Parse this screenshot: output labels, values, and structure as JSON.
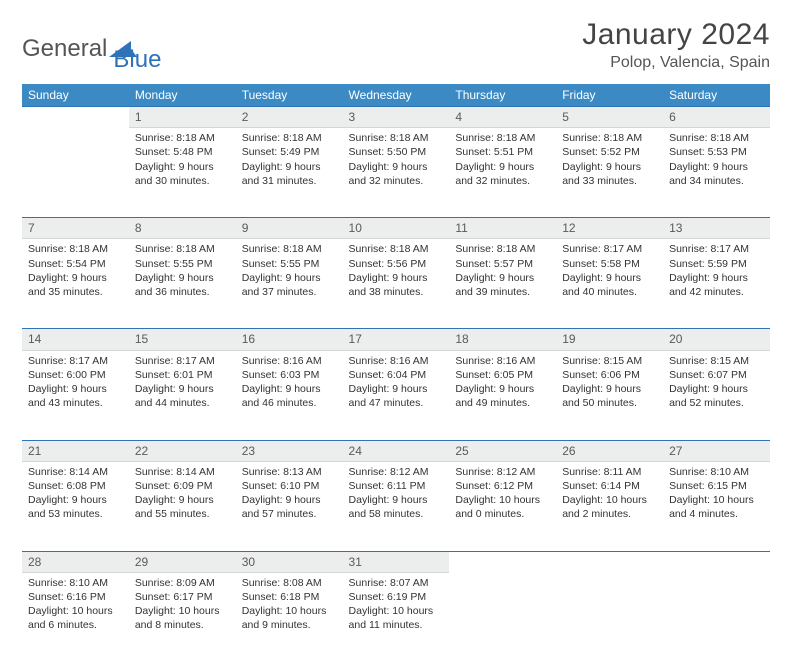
{
  "brand": {
    "part1": "General",
    "part2": "Blue"
  },
  "title": "January 2024",
  "location": "Polop, Valencia, Spain",
  "colors": {
    "header_bg": "#3b8ac4",
    "accent": "#2e72b8",
    "daynum_bg": "#eceded",
    "text": "#333333"
  },
  "day_headers": [
    "Sunday",
    "Monday",
    "Tuesday",
    "Wednesday",
    "Thursday",
    "Friday",
    "Saturday"
  ],
  "weeks": [
    {
      "nums": [
        "",
        "1",
        "2",
        "3",
        "4",
        "5",
        "6"
      ],
      "cells": [
        null,
        {
          "sunrise": "8:18 AM",
          "sunset": "5:48 PM",
          "daylight": "9 hours and 30 minutes."
        },
        {
          "sunrise": "8:18 AM",
          "sunset": "5:49 PM",
          "daylight": "9 hours and 31 minutes."
        },
        {
          "sunrise": "8:18 AM",
          "sunset": "5:50 PM",
          "daylight": "9 hours and 32 minutes."
        },
        {
          "sunrise": "8:18 AM",
          "sunset": "5:51 PM",
          "daylight": "9 hours and 32 minutes."
        },
        {
          "sunrise": "8:18 AM",
          "sunset": "5:52 PM",
          "daylight": "9 hours and 33 minutes."
        },
        {
          "sunrise": "8:18 AM",
          "sunset": "5:53 PM",
          "daylight": "9 hours and 34 minutes."
        }
      ]
    },
    {
      "nums": [
        "7",
        "8",
        "9",
        "10",
        "11",
        "12",
        "13"
      ],
      "cells": [
        {
          "sunrise": "8:18 AM",
          "sunset": "5:54 PM",
          "daylight": "9 hours and 35 minutes."
        },
        {
          "sunrise": "8:18 AM",
          "sunset": "5:55 PM",
          "daylight": "9 hours and 36 minutes."
        },
        {
          "sunrise": "8:18 AM",
          "sunset": "5:55 PM",
          "daylight": "9 hours and 37 minutes."
        },
        {
          "sunrise": "8:18 AM",
          "sunset": "5:56 PM",
          "daylight": "9 hours and 38 minutes."
        },
        {
          "sunrise": "8:18 AM",
          "sunset": "5:57 PM",
          "daylight": "9 hours and 39 minutes."
        },
        {
          "sunrise": "8:17 AM",
          "sunset": "5:58 PM",
          "daylight": "9 hours and 40 minutes."
        },
        {
          "sunrise": "8:17 AM",
          "sunset": "5:59 PM",
          "daylight": "9 hours and 42 minutes."
        }
      ]
    },
    {
      "nums": [
        "14",
        "15",
        "16",
        "17",
        "18",
        "19",
        "20"
      ],
      "cells": [
        {
          "sunrise": "8:17 AM",
          "sunset": "6:00 PM",
          "daylight": "9 hours and 43 minutes."
        },
        {
          "sunrise": "8:17 AM",
          "sunset": "6:01 PM",
          "daylight": "9 hours and 44 minutes."
        },
        {
          "sunrise": "8:16 AM",
          "sunset": "6:03 PM",
          "daylight": "9 hours and 46 minutes."
        },
        {
          "sunrise": "8:16 AM",
          "sunset": "6:04 PM",
          "daylight": "9 hours and 47 minutes."
        },
        {
          "sunrise": "8:16 AM",
          "sunset": "6:05 PM",
          "daylight": "9 hours and 49 minutes."
        },
        {
          "sunrise": "8:15 AM",
          "sunset": "6:06 PM",
          "daylight": "9 hours and 50 minutes."
        },
        {
          "sunrise": "8:15 AM",
          "sunset": "6:07 PM",
          "daylight": "9 hours and 52 minutes."
        }
      ]
    },
    {
      "nums": [
        "21",
        "22",
        "23",
        "24",
        "25",
        "26",
        "27"
      ],
      "cells": [
        {
          "sunrise": "8:14 AM",
          "sunset": "6:08 PM",
          "daylight": "9 hours and 53 minutes."
        },
        {
          "sunrise": "8:14 AM",
          "sunset": "6:09 PM",
          "daylight": "9 hours and 55 minutes."
        },
        {
          "sunrise": "8:13 AM",
          "sunset": "6:10 PM",
          "daylight": "9 hours and 57 minutes."
        },
        {
          "sunrise": "8:12 AM",
          "sunset": "6:11 PM",
          "daylight": "9 hours and 58 minutes."
        },
        {
          "sunrise": "8:12 AM",
          "sunset": "6:12 PM",
          "daylight": "10 hours and 0 minutes."
        },
        {
          "sunrise": "8:11 AM",
          "sunset": "6:14 PM",
          "daylight": "10 hours and 2 minutes."
        },
        {
          "sunrise": "8:10 AM",
          "sunset": "6:15 PM",
          "daylight": "10 hours and 4 minutes."
        }
      ]
    },
    {
      "nums": [
        "28",
        "29",
        "30",
        "31",
        "",
        "",
        ""
      ],
      "cells": [
        {
          "sunrise": "8:10 AM",
          "sunset": "6:16 PM",
          "daylight": "10 hours and 6 minutes."
        },
        {
          "sunrise": "8:09 AM",
          "sunset": "6:17 PM",
          "daylight": "10 hours and 8 minutes."
        },
        {
          "sunrise": "8:08 AM",
          "sunset": "6:18 PM",
          "daylight": "10 hours and 9 minutes."
        },
        {
          "sunrise": "8:07 AM",
          "sunset": "6:19 PM",
          "daylight": "10 hours and 11 minutes."
        },
        null,
        null,
        null
      ]
    }
  ],
  "labels": {
    "sunrise": "Sunrise:",
    "sunset": "Sunset:",
    "daylight": "Daylight:"
  }
}
